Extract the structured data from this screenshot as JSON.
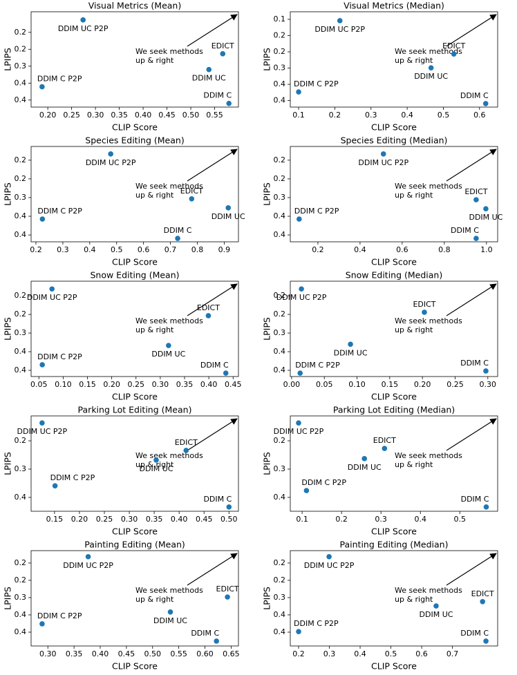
{
  "chart_data": [
    {
      "type": "scatter",
      "title": "Visual Metrics (Mean)",
      "xlabel": "CLIP Score",
      "ylabel": "LPIPS",
      "color": "#1f77b4",
      "y_inverted": true,
      "point_labels": [
        "DDIM C P2P",
        "DDIM UC P2P",
        "DDIM C",
        "DDIM UC",
        "EDICT"
      ],
      "x": [
        0.188,
        0.274,
        0.58,
        0.538,
        0.567
      ],
      "y": [
        0.373,
        0.136,
        0.432,
        0.312,
        0.256
      ],
      "annotation": [
        "We seek methods",
        "up & right"
      ],
      "xlim": [
        0.165,
        0.6
      ],
      "xticks": [
        {
          "value": 0.2,
          "label": "0.20"
        },
        {
          "value": 0.25,
          "label": "0.25"
        },
        {
          "value": 0.3,
          "label": "0.30"
        },
        {
          "value": 0.35,
          "label": "0.35"
        },
        {
          "value": 0.4,
          "label": "0.40"
        },
        {
          "value": 0.45,
          "label": "0.45"
        },
        {
          "value": 0.5,
          "label": "0.50"
        },
        {
          "value": 0.55,
          "label": "0.55"
        }
      ],
      "ylim": [
        0.107,
        0.445
      ],
      "yticks": [
        {
          "value": 0.18,
          "label": "0.2"
        },
        {
          "value": 0.24,
          "label": "0.2"
        },
        0.3,
        {
          "value": 0.36,
          "label": "0.4"
        },
        {
          "value": 0.42,
          "label": "0.4"
        }
      ]
    },
    {
      "type": "scatter",
      "title": "Visual Metrics (Median)",
      "xlabel": "CLIP Score",
      "ylabel": "LPIPS",
      "color": "#1f77b4",
      "y_inverted": true,
      "point_labels": [
        "DDIM C P2P",
        "DDIM UC P2P",
        "DDIM C",
        "DDIM UC",
        "EDICT"
      ],
      "x": [
        0.1,
        0.214,
        0.617,
        0.466,
        0.529
      ],
      "y": [
        0.388,
        0.125,
        0.431,
        0.299,
        0.248
      ],
      "annotation": [
        "We seek methods",
        "up & right"
      ],
      "xlim": [
        0.077,
        0.65
      ],
      "xticks": [
        0.1,
        0.2,
        0.3,
        0.4,
        0.5,
        0.6
      ],
      "ylim": [
        0.092,
        0.444
      ],
      "yticks": [
        {
          "value": 0.12,
          "label": "0.1"
        },
        {
          "value": 0.18,
          "label": "0.2"
        },
        {
          "value": 0.24,
          "label": "0.2"
        },
        0.3,
        {
          "value": 0.36,
          "label": "0.4"
        },
        {
          "value": 0.42,
          "label": "0.4"
        }
      ]
    },
    {
      "type": "scatter",
      "title": "Species Editing (Mean)",
      "xlabel": "CLIP Score",
      "ylabel": "LPIPS",
      "color": "#1f77b4",
      "y_inverted": true,
      "point_labels": [
        "DDIM C P2P",
        "DDIM UC P2P",
        "DDIM C",
        "DDIM UC",
        "EDICT"
      ],
      "x": [
        0.224,
        0.478,
        0.727,
        0.915,
        0.779
      ],
      "y": [
        0.369,
        0.16,
        0.431,
        0.333,
        0.304
      ],
      "annotation": [
        "We seek methods",
        "up & right"
      ],
      "xlim": [
        0.182,
        0.953
      ],
      "xticks": [
        0.2,
        0.3,
        0.4,
        0.5,
        0.6,
        0.7,
        0.8,
        0.9
      ],
      "ylim": [
        0.136,
        0.442
      ],
      "yticks": [
        {
          "value": 0.18,
          "label": "0.2"
        },
        {
          "value": 0.24,
          "label": "0.2"
        },
        0.3,
        {
          "value": 0.36,
          "label": "0.4"
        },
        {
          "value": 0.42,
          "label": "0.4"
        }
      ]
    },
    {
      "type": "scatter",
      "title": "Species Editing (Median)",
      "xlabel": "CLIP Score",
      "ylabel": "LPIPS",
      "color": "#1f77b4",
      "y_inverted": true,
      "point_labels": [
        "DDIM C P2P",
        "DDIM UC P2P",
        "DDIM C",
        "DDIM UC",
        "EDICT"
      ],
      "x": [
        0.111,
        0.511,
        0.951,
        0.997,
        0.951
      ],
      "y": [
        0.369,
        0.16,
        0.431,
        0.336,
        0.307
      ],
      "annotation": [
        "We seek methods",
        "up & right"
      ],
      "xlim": [
        0.069,
        1.053
      ],
      "xticks": [
        0.2,
        0.4,
        0.6,
        0.8,
        {
          "value": 1.0,
          "label": "1.0"
        }
      ],
      "ylim": [
        0.136,
        0.442
      ],
      "yticks": [
        {
          "value": 0.18,
          "label": "0.2"
        },
        {
          "value": 0.24,
          "label": "0.2"
        },
        0.3,
        {
          "value": 0.36,
          "label": "0.4"
        },
        {
          "value": 0.42,
          "label": "0.4"
        }
      ]
    },
    {
      "type": "scatter",
      "title": "Snow Editing (Mean)",
      "xlabel": "CLIP Score",
      "ylabel": "LPIPS",
      "color": "#1f77b4",
      "y_inverted": true,
      "point_labels": [
        "DDIM C P2P",
        "DDIM UC P2P",
        "DDIM C",
        "DDIM UC",
        "EDICT"
      ],
      "x": [
        0.057,
        0.077,
        0.435,
        0.317,
        0.399
      ],
      "y": [
        0.402,
        0.158,
        0.429,
        0.34,
        0.244
      ],
      "annotation": [
        "We seek methods",
        "up & right"
      ],
      "xlim": [
        0.034,
        0.461
      ],
      "xticks": [
        {
          "value": 0.05,
          "label": "0.05"
        },
        {
          "value": 0.1,
          "label": "0.10"
        },
        {
          "value": 0.15,
          "label": "0.15"
        },
        {
          "value": 0.2,
          "label": "0.20"
        },
        {
          "value": 0.25,
          "label": "0.25"
        },
        {
          "value": 0.3,
          "label": "0.30"
        },
        {
          "value": 0.35,
          "label": "0.35"
        },
        {
          "value": 0.4,
          "label": "0.40"
        },
        {
          "value": 0.45,
          "label": "0.45"
        }
      ],
      "ylim": [
        0.133,
        0.44
      ],
      "yticks": [
        {
          "value": 0.18,
          "label": "0.2"
        },
        {
          "value": 0.24,
          "label": "0.2"
        },
        0.3,
        {
          "value": 0.36,
          "label": "0.4"
        },
        {
          "value": 0.42,
          "label": "0.4"
        }
      ]
    },
    {
      "type": "scatter",
      "title": "Snow Editing (Median)",
      "xlabel": "CLIP Score",
      "ylabel": "LPIPS",
      "color": "#1f77b4",
      "y_inverted": true,
      "point_labels": [
        "DDIM C P2P",
        "DDIM UC P2P",
        "DDIM C",
        "DDIM UC",
        "EDICT"
      ],
      "x": [
        0.013,
        0.015,
        0.297,
        0.09,
        0.203
      ],
      "y": [
        0.429,
        0.158,
        0.422,
        0.336,
        0.233
      ],
      "annotation": [
        "We seek methods",
        "up & right"
      ],
      "xlim": [
        -0.002,
        0.315
      ],
      "xticks": [
        {
          "value": 0,
          "label": "0.00"
        },
        {
          "value": 0.05,
          "label": "0.05"
        },
        {
          "value": 0.1,
          "label": "0.10"
        },
        {
          "value": 0.15,
          "label": "0.15"
        },
        {
          "value": 0.2,
          "label": "0.20"
        },
        {
          "value": 0.25,
          "label": "0.25"
        },
        {
          "value": 0.3,
          "label": "0.30"
        }
      ],
      "ylim": [
        0.133,
        0.44
      ],
      "yticks": [
        {
          "value": 0.18,
          "label": "0.2"
        },
        {
          "value": 0.24,
          "label": "0.2"
        },
        0.3,
        {
          "value": 0.36,
          "label": "0.4"
        },
        {
          "value": 0.42,
          "label": "0.4"
        }
      ]
    },
    {
      "type": "scatter",
      "title": "Parking Lot Editing (Mean)",
      "xlabel": "CLIP Score",
      "ylabel": "LPIPS",
      "color": "#1f77b4",
      "y_inverted": true,
      "point_labels": [
        "DDIM C P2P",
        "DDIM UC P2P",
        "DDIM C",
        "DDIM UC",
        "EDICT"
      ],
      "x": [
        0.151,
        0.125,
        0.5,
        0.354,
        0.414
      ],
      "y": [
        0.359,
        0.137,
        0.434,
        0.268,
        0.234
      ],
      "annotation": [
        "We seek methods",
        "up & right"
      ],
      "xlim": [
        0.103,
        0.519
      ],
      "xticks": [
        {
          "value": 0.15,
          "label": "0.15"
        },
        {
          "value": 0.2,
          "label": "0.20"
        },
        {
          "value": 0.25,
          "label": "0.25"
        },
        {
          "value": 0.3,
          "label": "0.30"
        },
        {
          "value": 0.35,
          "label": "0.35"
        },
        {
          "value": 0.4,
          "label": "0.40"
        },
        {
          "value": 0.45,
          "label": "0.45"
        },
        {
          "value": 0.5,
          "label": "0.50"
        }
      ],
      "ylim": [
        0.112,
        0.449
      ],
      "yticks": [
        0.2,
        0.3,
        0.4
      ]
    },
    {
      "type": "scatter",
      "title": "Parking Lot Editing (Median)",
      "xlabel": "CLIP Score",
      "ylabel": "LPIPS",
      "color": "#1f77b4",
      "y_inverted": true,
      "point_labels": [
        "DDIM C P2P",
        "DDIM UC P2P",
        "DDIM C",
        "DDIM UC",
        "EDICT"
      ],
      "x": [
        0.111,
        0.091,
        0.567,
        0.258,
        0.309
      ],
      "y": [
        0.376,
        0.137,
        0.434,
        0.263,
        0.227
      ],
      "annotation": [
        "We seek methods",
        "up & right"
      ],
      "xlim": [
        0.07,
        0.596
      ],
      "xticks": [
        0.1,
        0.2,
        0.3,
        0.4,
        0.5
      ],
      "ylim": [
        0.112,
        0.449
      ],
      "yticks": [
        0.2,
        0.3,
        0.4
      ]
    },
    {
      "type": "scatter",
      "title": "Painting Editing (Mean)",
      "xlabel": "CLIP Score",
      "ylabel": "LPIPS",
      "color": "#1f77b4",
      "y_inverted": true,
      "point_labels": [
        "DDIM C P2P",
        "DDIM UC P2P",
        "DDIM C",
        "DDIM UC",
        "EDICT"
      ],
      "x": [
        0.289,
        0.377,
        0.622,
        0.534,
        0.643
      ],
      "y": [
        0.391,
        0.158,
        0.451,
        0.35,
        0.298
      ],
      "annotation": [
        "We seek methods",
        "up & right"
      ],
      "xlim": [
        0.268,
        0.664
      ],
      "xticks": [
        {
          "value": 0.3,
          "label": "0.30"
        },
        {
          "value": 0.35,
          "label": "0.35"
        },
        {
          "value": 0.4,
          "label": "0.40"
        },
        {
          "value": 0.45,
          "label": "0.45"
        },
        {
          "value": 0.5,
          "label": "0.50"
        },
        {
          "value": 0.55,
          "label": "0.55"
        },
        {
          "value": 0.6,
          "label": "0.60"
        },
        {
          "value": 0.65,
          "label": "0.65"
        }
      ],
      "ylim": [
        0.137,
        0.468
      ],
      "yticks": [
        {
          "value": 0.18,
          "label": "0.2"
        },
        {
          "value": 0.24,
          "label": "0.2"
        },
        0.3,
        {
          "value": 0.36,
          "label": "0.4"
        },
        {
          "value": 0.42,
          "label": "0.4"
        }
      ]
    },
    {
      "type": "scatter",
      "title": "Painting Editing (Median)",
      "xlabel": "CLIP Score",
      "ylabel": "LPIPS",
      "color": "#1f77b4",
      "y_inverted": true,
      "point_labels": [
        "DDIM C P2P",
        "DDIM UC P2P",
        "DDIM C",
        "DDIM UC",
        "EDICT"
      ],
      "x": [
        0.2,
        0.299,
        0.809,
        0.647,
        0.798
      ],
      "y": [
        0.418,
        0.158,
        0.451,
        0.329,
        0.314
      ],
      "annotation": [
        "We seek methods",
        "up & right"
      ],
      "xlim": [
        0.173,
        0.847
      ],
      "xticks": [
        0.2,
        0.3,
        0.4,
        0.5,
        0.6,
        0.7
      ],
      "ylim": [
        0.137,
        0.468
      ],
      "yticks": [
        {
          "value": 0.18,
          "label": "0.2"
        },
        {
          "value": 0.24,
          "label": "0.2"
        },
        0.3,
        {
          "value": 0.36,
          "label": "0.4"
        },
        {
          "value": 0.42,
          "label": "0.4"
        }
      ]
    }
  ]
}
